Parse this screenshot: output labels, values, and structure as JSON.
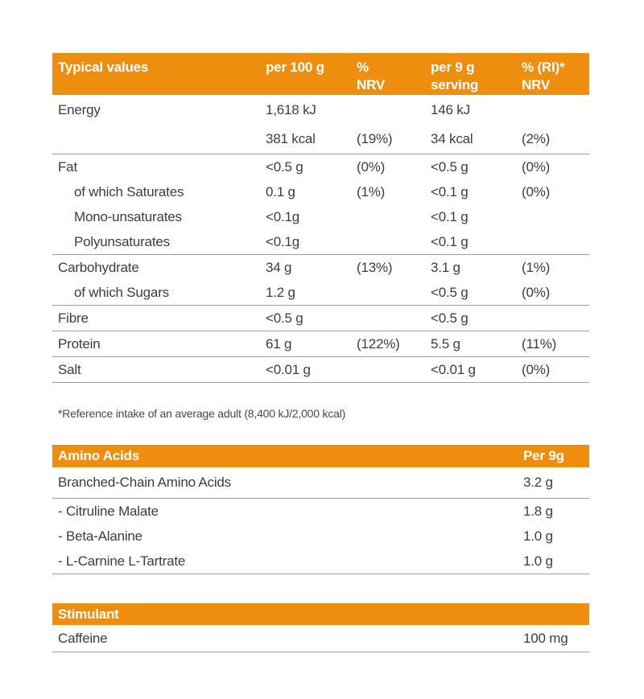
{
  "colors": {
    "header_bg": "#EE8E0E",
    "header_text": "#FFFFFF",
    "body_text": "#3D3D3C",
    "divider": "#9E9E9E"
  },
  "nutrition_table": {
    "header": {
      "col1": "Typical values",
      "col2": "per 100 g",
      "col3_line1": "%",
      "col3_line2": "NRV",
      "col4_line1": "per 9 g",
      "col4_line2": "serving",
      "col5_line1": "% (RI)*",
      "col5_line2": "NRV"
    },
    "rows": [
      {
        "label": "Energy",
        "per_100g": "1,618 kJ",
        "nrv": "",
        "per_9g": "146 kJ",
        "ri_nrv": ""
      },
      {
        "label": "",
        "per_100g": "381 kcal",
        "nrv": "(19%)",
        "per_9g": "34 kcal",
        "ri_nrv": "(2%)"
      },
      {
        "label": "Fat",
        "per_100g": "<0.5 g",
        "nrv": "(0%)",
        "per_9g": "<0.5 g",
        "ri_nrv": "(0%)"
      },
      {
        "label": "of which Saturates",
        "per_100g": "0.1 g",
        "nrv": "(1%)",
        "per_9g": "<0.1 g",
        "ri_nrv": "(0%)"
      },
      {
        "label": "Mono-unsaturates",
        "per_100g": "<0.1g",
        "nrv": "",
        "per_9g": "<0.1 g",
        "ri_nrv": ""
      },
      {
        "label": "Polyunsaturates",
        "per_100g": "<0.1g",
        "nrv": "",
        "per_9g": "<0.1 g",
        "ri_nrv": ""
      },
      {
        "label": "Carbohydrate",
        "per_100g": "34 g",
        "nrv": "(13%)",
        "per_9g": "3.1 g",
        "ri_nrv": "(1%)"
      },
      {
        "label": "of which Sugars",
        "per_100g": "1.2 g",
        "nrv": "",
        "per_9g": "<0.5 g",
        "ri_nrv": "(0%)"
      },
      {
        "label": "Fibre",
        "per_100g": "<0.5 g",
        "nrv": "",
        "per_9g": "<0.5 g",
        "ri_nrv": ""
      },
      {
        "label": "Protein",
        "per_100g": "61 g",
        "nrv": "(122%)",
        "per_9g": "5.5 g",
        "ri_nrv": "(11%)"
      },
      {
        "label": "Salt",
        "per_100g": "<0.01 g",
        "nrv": "",
        "per_9g": "<0.01 g",
        "ri_nrv": "(0%)"
      }
    ]
  },
  "footnote": "*Reference intake of an average adult (8,400 kJ/2,000 kcal)",
  "amino_acids_table": {
    "title": "Amino Acids",
    "column_header": "Per 9g",
    "rows": [
      {
        "label": "Branched-Chain Amino Acids",
        "value": "3.2 g"
      },
      {
        "label": "- Citruline Malate",
        "value": "1.8 g"
      },
      {
        "label": "- Beta-Alanine",
        "value": "1.0 g"
      },
      {
        "label": "- L-Carnine L-Tartrate",
        "value": "1.0 g"
      }
    ]
  },
  "stimulant_table": {
    "title": "Stimulant",
    "rows": [
      {
        "label": "Caffeine",
        "value": "100 mg"
      }
    ]
  }
}
